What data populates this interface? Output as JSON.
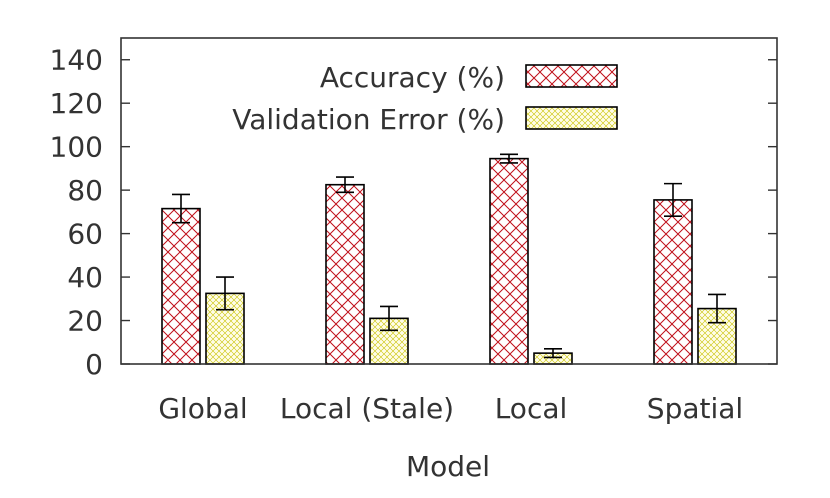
{
  "chart_data": {
    "type": "bar",
    "title": "",
    "xlabel": "Model",
    "ylabel": "",
    "categories": [
      "Global",
      "Local (Stale)",
      "Local",
      "Spatial"
    ],
    "ylim": [
      0,
      150
    ],
    "yticks": [
      0,
      20,
      40,
      60,
      80,
      100,
      120,
      140
    ],
    "grid": false,
    "legend_position": "top-right",
    "series": [
      {
        "name": "Accuracy (%)",
        "values": [
          71.5,
          82.5,
          94.5,
          75.5
        ],
        "errors": [
          6.5,
          3.5,
          2,
          7.5
        ],
        "pattern": "crosshatch",
        "color": "#c0101a",
        "fill": "#ffffff"
      },
      {
        "name": "Validation Error (%)",
        "values": [
          32.5,
          21,
          5,
          25.5
        ],
        "errors": [
          7.5,
          5.5,
          2,
          6.5
        ],
        "pattern": "fine-crosshatch",
        "color": "#c9c200",
        "fill": "#fffde8"
      }
    ]
  }
}
